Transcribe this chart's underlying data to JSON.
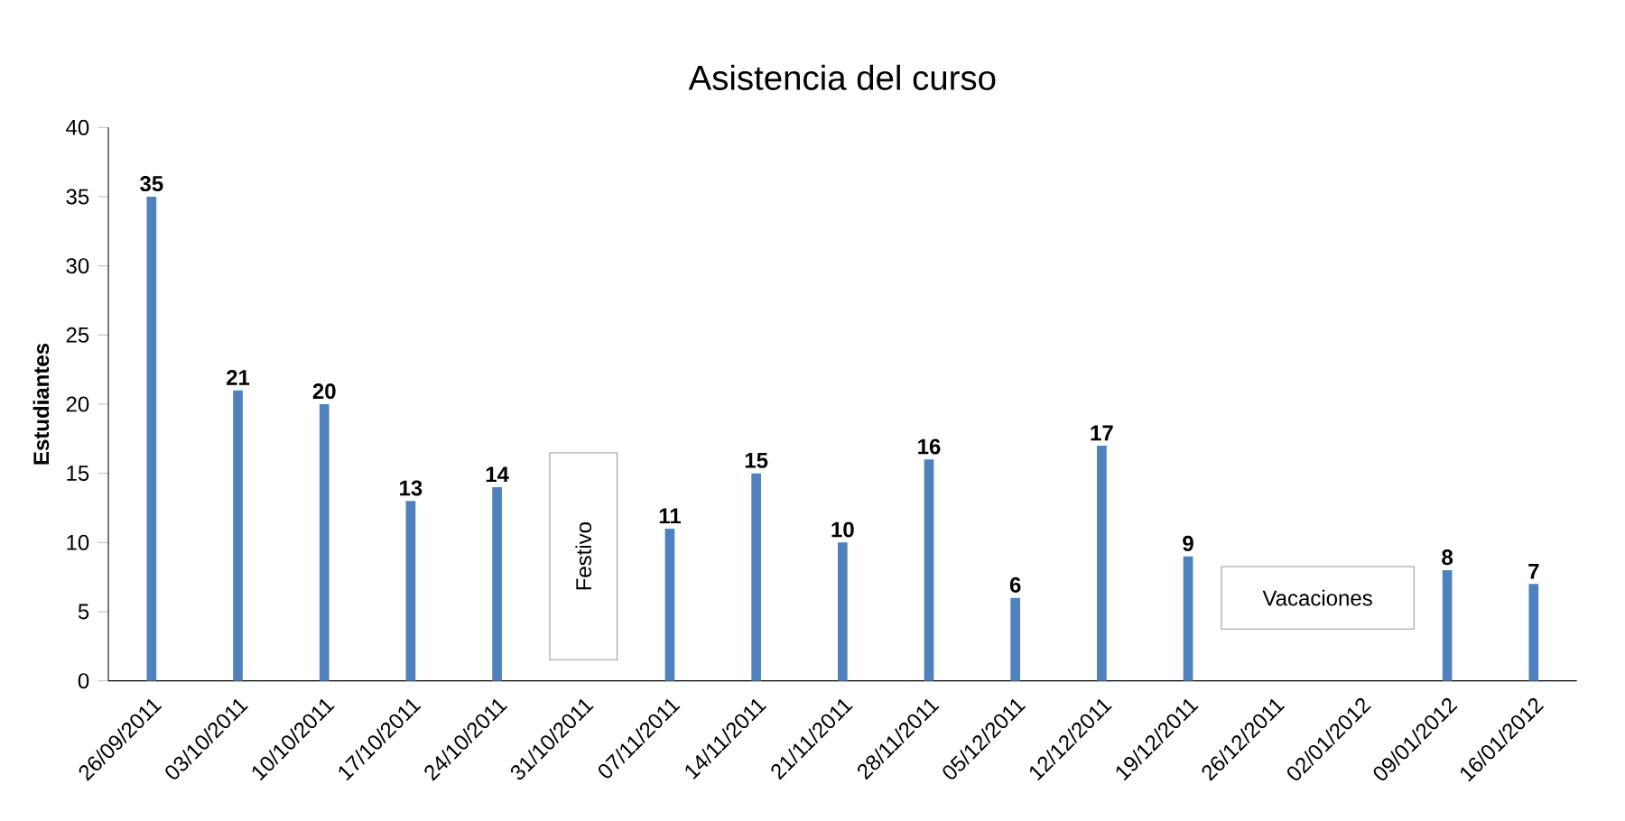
{
  "chart_data": {
    "type": "bar",
    "title": "Asistencia del curso",
    "ylabel": "Estudiantes",
    "categories": [
      "26/09/2011",
      "03/10/2011",
      "10/10/2011",
      "17/10/2011",
      "24/10/2011",
      "31/10/2011",
      "07/11/2011",
      "14/11/2011",
      "21/11/2011",
      "28/11/2011",
      "05/12/2011",
      "12/12/2011",
      "19/12/2011",
      "26/12/2011",
      "02/01/2012",
      "09/01/2012",
      "16/01/2012"
    ],
    "values": [
      35,
      21,
      20,
      13,
      14,
      null,
      11,
      15,
      10,
      16,
      6,
      17,
      9,
      null,
      null,
      8,
      7
    ],
    "color": "#4f81bd",
    "ylim": [
      0,
      40
    ],
    "yticks": [
      0,
      5,
      10,
      15,
      20,
      25,
      30,
      35,
      40
    ],
    "data_labels": true,
    "grid": false,
    "annotations": [
      "Festivo",
      "Vacaciones"
    ]
  }
}
